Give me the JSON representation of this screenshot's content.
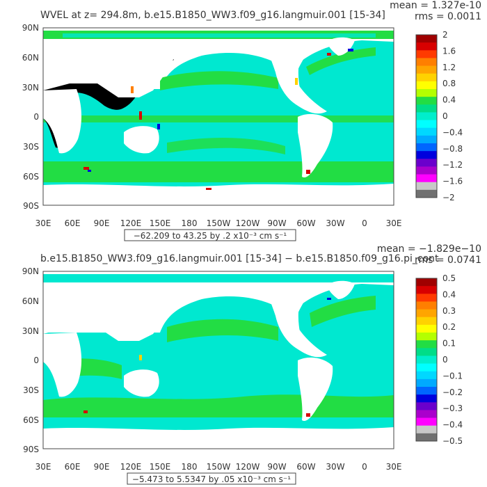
{
  "panels": [
    {
      "title": "WVEL at z= 294.8m, b.e15.B1850_WW3.f09_g16.langmuir.001 [15-34]",
      "stats": {
        "mean": "mean = 1.327e-10",
        "rms": "rms = 0.0011"
      },
      "range_label": "−62.209 to 43.25 by .2 x10⁻³ cm s⁻¹",
      "colorbar": {
        "labels": [
          "2",
          "1.6",
          "1.2",
          "0.8",
          "0.4",
          "0",
          "−0.4",
          "−0.8",
          "−1.2",
          "−1.6",
          "−2"
        ],
        "colors": [
          "#a00000",
          "#d80000",
          "#ff3a00",
          "#ff7f00",
          "#ffa500",
          "#ffd200",
          "#ffff00",
          "#b4ff00",
          "#22dd44",
          "#00dd88",
          "#00eecc",
          "#00ffff",
          "#00d8ff",
          "#00aaff",
          "#0066ff",
          "#0000dd",
          "#6a00cc",
          "#aa00cc",
          "#ff00ff",
          "#c8c8c8",
          "#707070"
        ]
      }
    },
    {
      "title": "b.e15.B1850_WW3.f09_g16.langmuir.001 [15-34] − b.e15.B1850.f09_g16.pi_cont",
      "stats": {
        "mean": "mean = −1.829e−10",
        "rms": "rms = 0.0741"
      },
      "range_label": "−5.473 to 5.5347 by .05 x10⁻³ cm s⁻¹",
      "colorbar": {
        "labels": [
          "0.5",
          "0.4",
          "0.3",
          "0.2",
          "0.1",
          "0",
          "−0.1",
          "−0.2",
          "−0.3",
          "−0.4",
          "−0.5"
        ],
        "colors": [
          "#a00000",
          "#d80000",
          "#ff3a00",
          "#ff7f00",
          "#ffa500",
          "#ffd200",
          "#ffff00",
          "#b4ff00",
          "#22dd44",
          "#00dd88",
          "#00eecc",
          "#00ffff",
          "#00d8ff",
          "#00aaff",
          "#0066ff",
          "#0000dd",
          "#6a00cc",
          "#aa00cc",
          "#ff00ff",
          "#c8c8c8",
          "#707070"
        ]
      }
    }
  ],
  "axes": {
    "lat_labels": [
      "90N",
      "60N",
      "30N",
      "0",
      "30S",
      "60S",
      "90S"
    ],
    "lon_labels": [
      "30E",
      "60E",
      "90E",
      "120E",
      "150E",
      "180",
      "150W",
      "120W",
      "90W",
      "60W",
      "30W",
      "0",
      "30E"
    ]
  },
  "colors": {
    "ocean_main": "#00e8d0",
    "ocean_positive": "#22dd44",
    "land": "#ffffff"
  }
}
